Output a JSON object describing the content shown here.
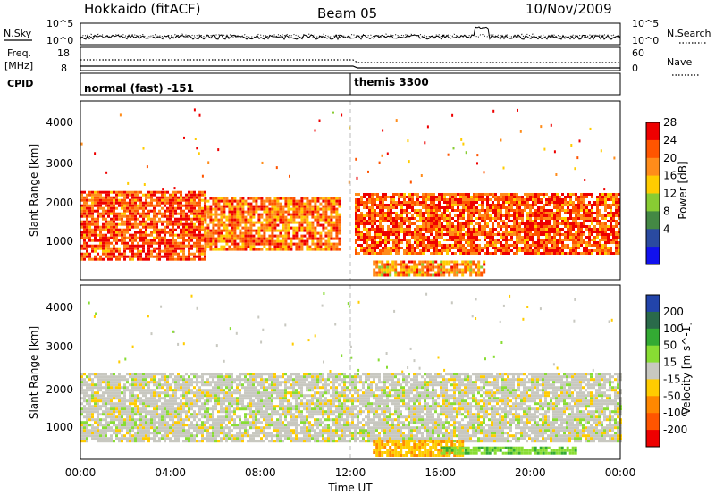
{
  "header": {
    "station": "Hokkaido (fitACF)",
    "beam": "Beam 05",
    "date": "10/Nov/2009"
  },
  "strip": {
    "nsky_label": "N.Sky",
    "nsky_ticks": [
      "10^5",
      "10^0"
    ],
    "nsearch_label": "N.Search",
    "nsearch_ticks": [
      "10^5",
      "10^0"
    ],
    "freq_label_1": "Freq.",
    "freq_label_2": "[MHz]",
    "freq_ticks": [
      "18",
      "8"
    ],
    "nave_label": "Nave",
    "nave_ticks": [
      "60",
      "0"
    ],
    "cpid_label": "CPID",
    "cpid_segments": [
      "normal (fast) -151",
      "themis 3300"
    ]
  },
  "axes": {
    "xlabel": "Time UT",
    "xticks": [
      "00:00",
      "04:00",
      "08:00",
      "12:00",
      "16:00",
      "20:00",
      "00:00"
    ],
    "ylabel": "Slant Range [km]",
    "yticks": [
      "1000",
      "2000",
      "3000",
      "4000"
    ]
  },
  "power_scale": {
    "label": "Power [dB]",
    "ticks": [
      "28",
      "24",
      "20",
      "16",
      "12",
      "8",
      "4"
    ],
    "colors": [
      "#ee0000",
      "#ff5500",
      "#ff8c1a",
      "#ffcc00",
      "#88cc33",
      "#448844",
      "#2a4aa0",
      "#1111ee"
    ]
  },
  "velocity_scale": {
    "label": "Velocity [m s^-1]",
    "ticks": [
      "200",
      "100",
      "50",
      "15",
      "-15",
      "-50",
      "-100",
      "-200"
    ],
    "colors": [
      "#2244aa",
      "#2a6a4a",
      "#33aa33",
      "#88dd33",
      "#c8c8c0",
      "#ffcc00",
      "#ff8800",
      "#ff5500",
      "#ee0000"
    ]
  },
  "chart_data": {
    "type": "heatmap",
    "title": "Hokkaido (fitACF) Beam 05 10/Nov/2009",
    "x_range": [
      "00:00",
      "24:00"
    ],
    "xlabel": "Time UT",
    "ylabel": "Slant Range [km]",
    "ylim": [
      180,
      4550
    ],
    "panels": [
      {
        "name": "Power",
        "unit": "dB",
        "range": [
          0,
          30
        ],
        "regions": [
          {
            "t0": 0.0,
            "t1": 5.5,
            "r0": 650,
            "r1": 2350,
            "dominant_value": 26
          },
          {
            "t0": 5.5,
            "t1": 11.5,
            "r0": 900,
            "r1": 2200,
            "dominant_value": 24
          },
          {
            "t0": 12.2,
            "t1": 24.0,
            "r0": 800,
            "r1": 2300,
            "dominant_value": 26
          },
          {
            "t0": 13.0,
            "t1": 18.0,
            "r0": 300,
            "r1": 650,
            "dominant_value": 22
          }
        ]
      },
      {
        "name": "Velocity",
        "unit": "m s^-1",
        "range": [
          -200,
          200
        ],
        "regions": [
          {
            "t0": 0.0,
            "t1": 24.0,
            "r0": 650,
            "r1": 2350,
            "dominant_value": 0
          },
          {
            "t0": 13.0,
            "t1": 17.0,
            "r0": 300,
            "r1": 650,
            "dominant_value": -40
          },
          {
            "t0": 16.0,
            "t1": 22.0,
            "r0": 300,
            "r1": 500,
            "dominant_value": 40
          }
        ]
      }
    ],
    "cpid": [
      {
        "start": "00:00",
        "end": "12:00",
        "name": "normal (fast) -151"
      },
      {
        "start": "12:00",
        "end": "24:00",
        "name": "themis 3300"
      }
    ]
  }
}
